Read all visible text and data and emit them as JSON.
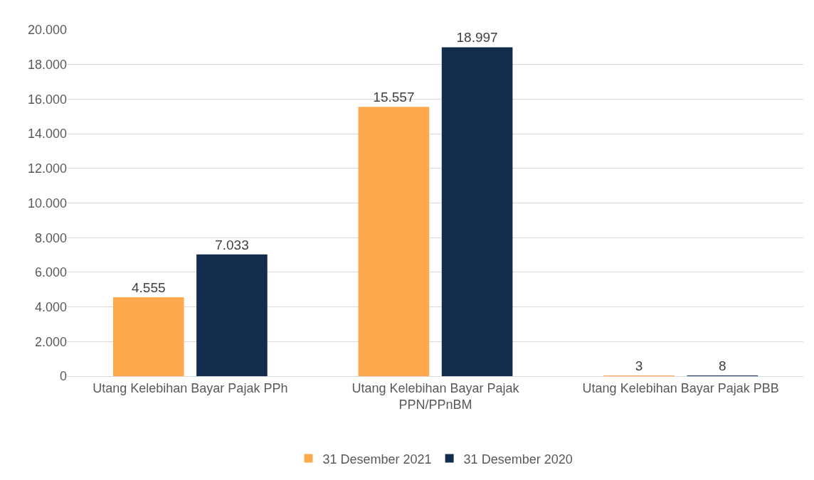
{
  "chart_data": {
    "type": "bar",
    "categories": [
      "Utang Kelebihan Bayar Pajak PPh",
      "Utang Kelebihan Bayar Pajak PPN/PPnBM",
      "Utang Kelebihan Bayar Pajak PBB"
    ],
    "series": [
      {
        "name": "31 Desember 2021",
        "color": "#ffa94d",
        "values": [
          4555,
          15557,
          3
        ],
        "value_labels": [
          "4.555",
          "15.557",
          "3"
        ]
      },
      {
        "name": "31 Desember 2020",
        "color": "#132d4e",
        "values": [
          7033,
          18997,
          8
        ],
        "value_labels": [
          "7.033",
          "18.997",
          "8"
        ]
      }
    ],
    "ylim": [
      0,
      20000
    ],
    "yticks": [
      {
        "value": 0,
        "label": "0"
      },
      {
        "value": 2000,
        "label": "2.000"
      },
      {
        "value": 4000,
        "label": "4.000"
      },
      {
        "value": 6000,
        "label": "6.000"
      },
      {
        "value": 8000,
        "label": "8.000"
      },
      {
        "value": 10000,
        "label": "10.000"
      },
      {
        "value": 12000,
        "label": "12.000"
      },
      {
        "value": 14000,
        "label": "14.000"
      },
      {
        "value": 16000,
        "label": "16.000"
      },
      {
        "value": 18000,
        "label": "18.000"
      },
      {
        "value": 20000,
        "label": "20.000"
      }
    ],
    "grid": "y",
    "legend": "bottom"
  }
}
